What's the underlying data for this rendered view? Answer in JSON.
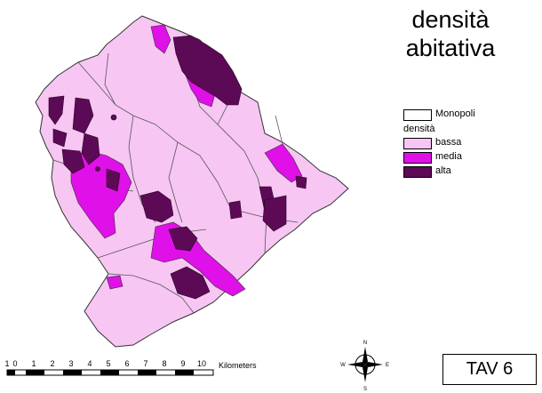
{
  "title": {
    "line1": "densità",
    "line2": "abitativa"
  },
  "legend": {
    "municipality": {
      "label": "Monopoli",
      "color": "#ffffff"
    },
    "header": "densità",
    "classes": [
      {
        "label": "bassa",
        "color": "#f7c6f3"
      },
      {
        "label": "media",
        "color": "#e010e8"
      },
      {
        "label": "alta",
        "color": "#5c0a55"
      }
    ]
  },
  "scale_bar": {
    "ticks": [
      "1",
      "0",
      "1",
      "2",
      "3",
      "4",
      "5",
      "6",
      "7",
      "8",
      "9",
      "10"
    ],
    "unit": "Kilometers"
  },
  "north_arrow": {
    "n": "N",
    "e": "E",
    "s": "S",
    "w": "W",
    "icon": "compass-rose-icon"
  },
  "sheet_label": "TAV 6"
}
